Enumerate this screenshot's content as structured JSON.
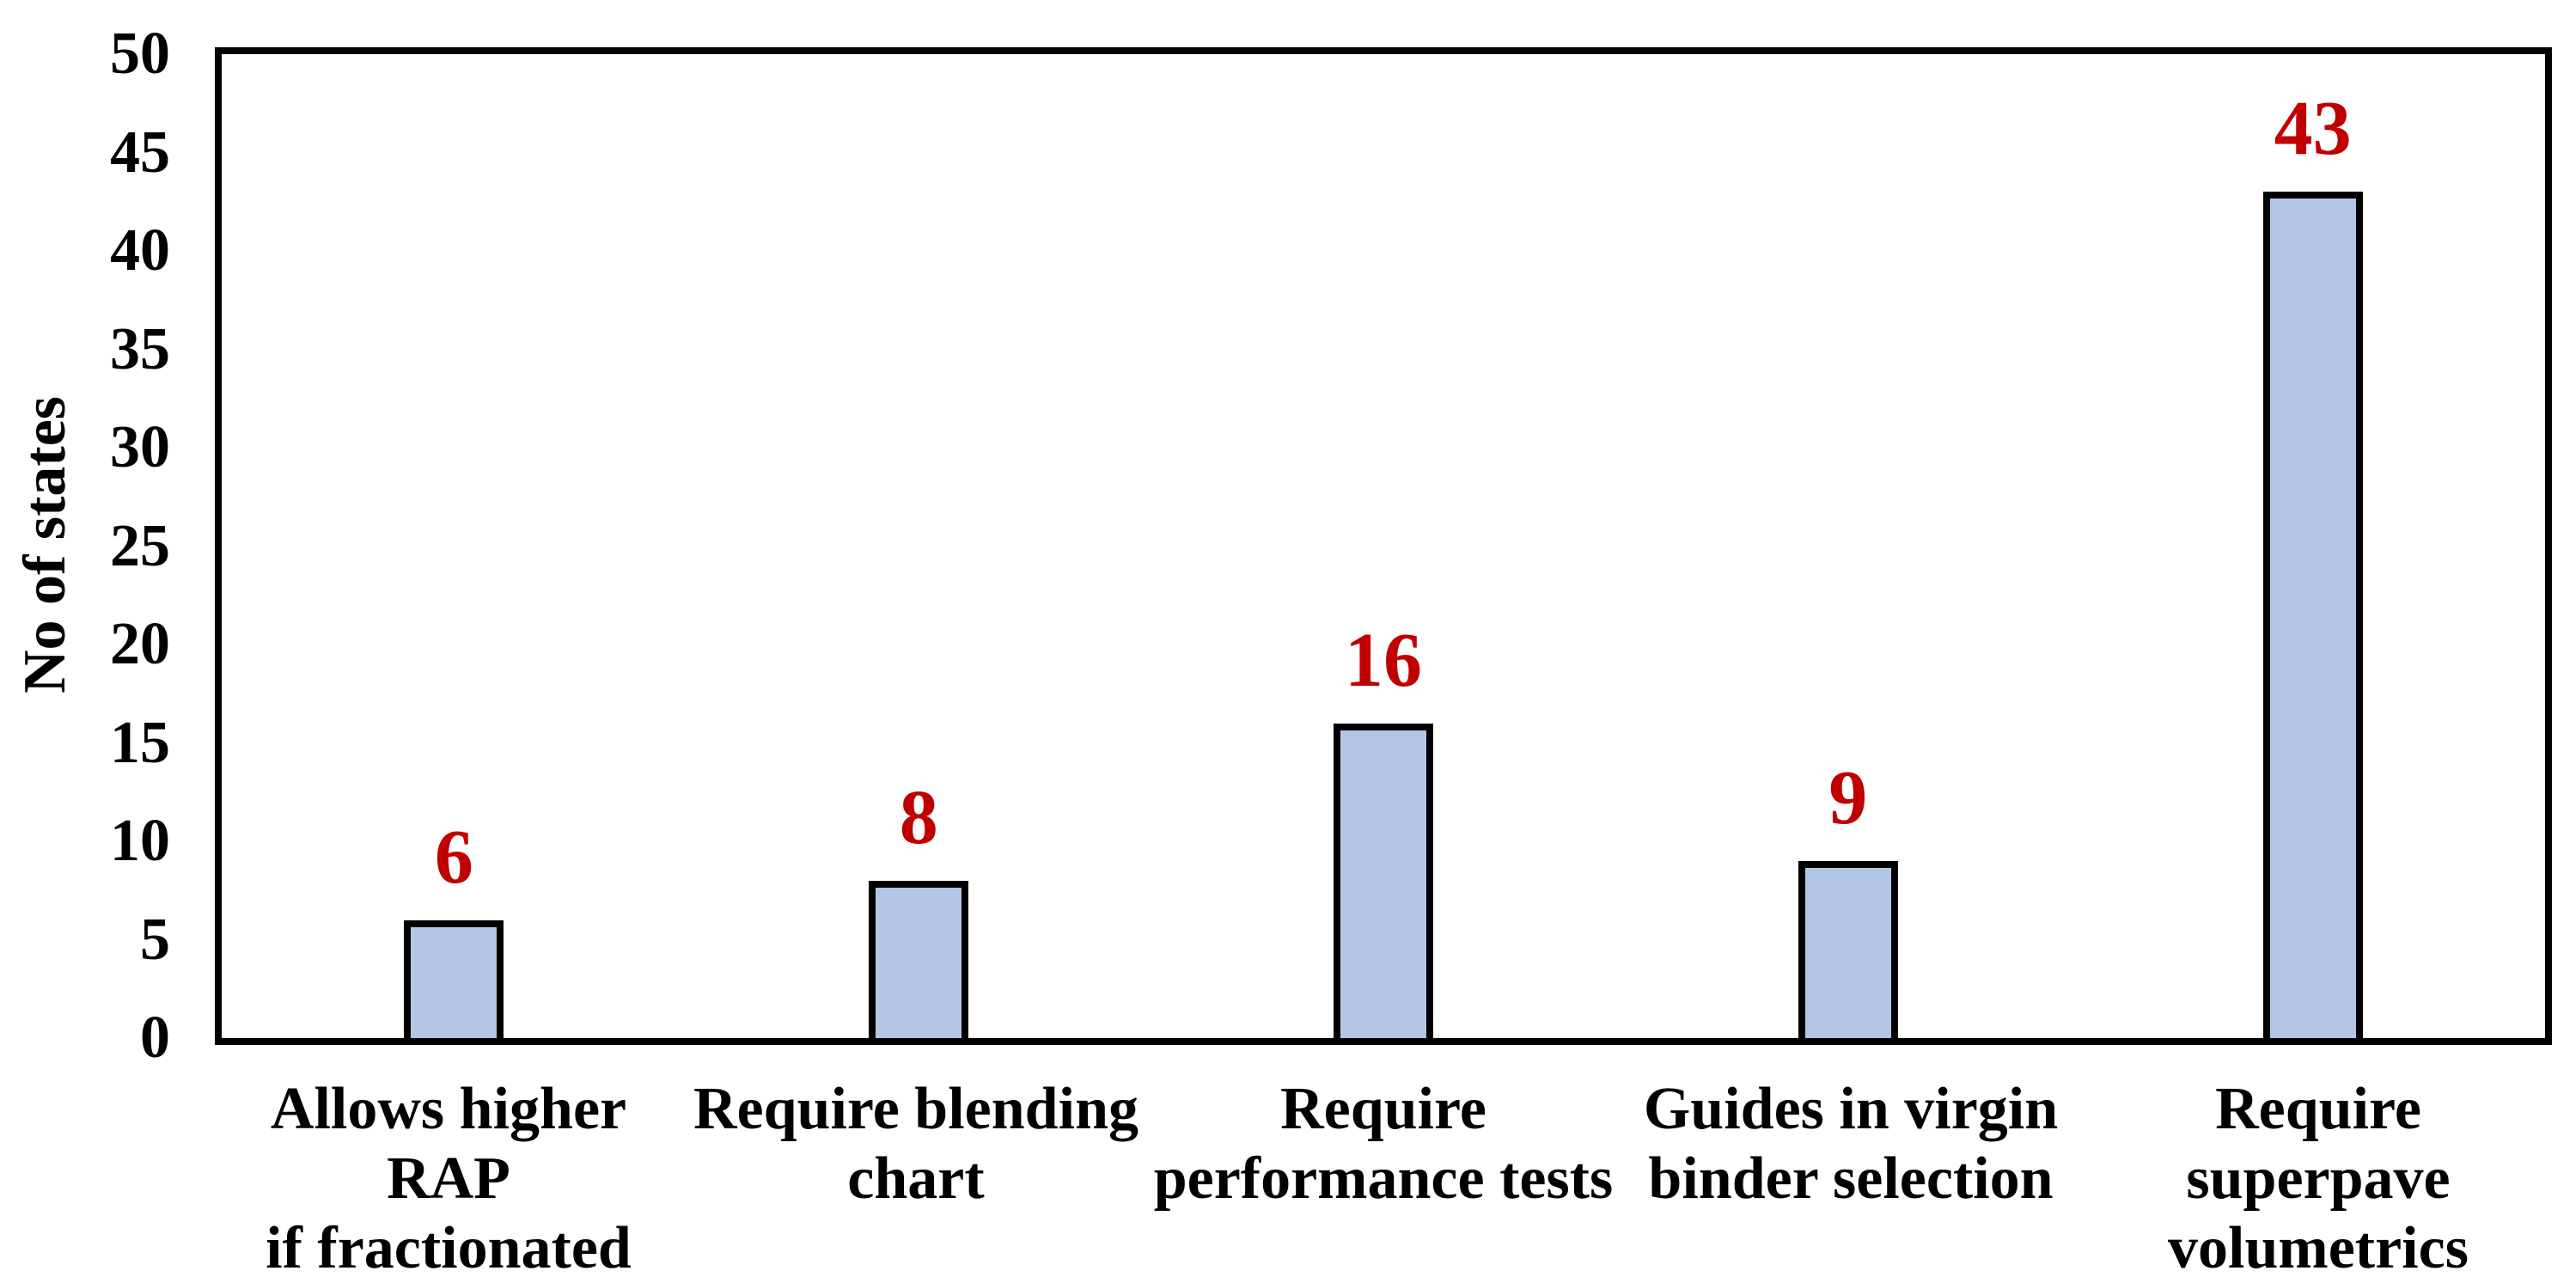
{
  "page": {
    "background": "#FFFFFF"
  },
  "chart_data": {
    "type": "bar",
    "title": "",
    "xlabel": "",
    "ylabel": "No of states",
    "ylim": [
      0,
      50
    ],
    "yticks": [
      0,
      5,
      10,
      15,
      20,
      25,
      30,
      35,
      40,
      45,
      50
    ],
    "grid": false,
    "legend": false,
    "plot_border": true,
    "categories": [
      "Allows higher RAP\nif fractionated",
      "Require blending\nchart",
      "Require\nperformance tests",
      "Guides in virgin\nbinder selection",
      "Require superpave\nvolumetrics"
    ],
    "values": [
      6,
      8,
      16,
      9,
      43
    ],
    "value_labels": [
      "6",
      "8",
      "16",
      "9",
      "43"
    ],
    "colors": {
      "bar_fill": "#B4C6E7",
      "bar_border": "#000000",
      "axis": "#000000",
      "value_label": "#C00000",
      "text": "#000000"
    }
  }
}
